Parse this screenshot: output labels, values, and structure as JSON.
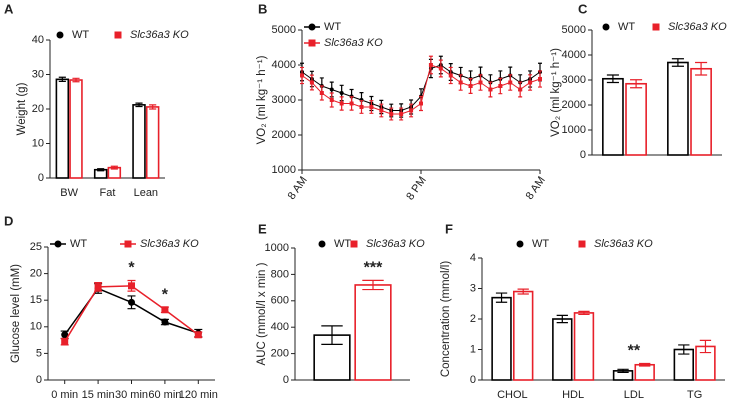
{
  "chart_data": [
    {
      "type": "bar",
      "panel_label": "A",
      "ylabel": "Weight (g)",
      "categories": [
        "BW",
        "Fat",
        "Lean"
      ],
      "ylim": [
        0,
        40
      ],
      "yticks": [
        0,
        10,
        20,
        30,
        40
      ],
      "series": [
        {
          "name": "WT",
          "color": "#000000",
          "marker": "circle",
          "values": [
            28.6,
            2.4,
            21.2
          ],
          "errors": [
            0.6,
            0.3,
            0.5
          ]
        },
        {
          "name": "Slc36a3 KO",
          "color": "#e8202a",
          "marker": "square",
          "values": [
            28.4,
            3.0,
            20.6
          ],
          "errors": [
            0.5,
            0.4,
            0.6
          ]
        }
      ]
    },
    {
      "type": "line",
      "panel_label": "B",
      "ylabel": "VO₂ (ml kg⁻¹ h⁻¹)",
      "x": [
        0,
        1,
        2,
        3,
        4,
        5,
        6,
        7,
        8,
        9,
        10,
        11,
        12,
        13,
        14,
        15,
        16,
        17,
        18,
        19,
        20,
        21,
        22,
        23,
        24
      ],
      "xlim": [
        0,
        24
      ],
      "xticks": [
        {
          "value": 0,
          "label": "8 AM"
        },
        {
          "value": 12,
          "label": "8 PM"
        },
        {
          "value": 24,
          "label": "8 AM"
        }
      ],
      "ylim": [
        1000,
        5000
      ],
      "yticks": [
        1000,
        2000,
        3000,
        4000,
        5000
      ],
      "series": [
        {
          "name": "WT",
          "color": "#000000",
          "marker": "circle",
          "values": [
            3800,
            3600,
            3400,
            3300,
            3200,
            3100,
            3000,
            2900,
            2800,
            2700,
            2700,
            2800,
            3100,
            3900,
            4000,
            3800,
            3700,
            3600,
            3700,
            3500,
            3600,
            3700,
            3500,
            3600,
            3800
          ],
          "errors": [
            250,
            220,
            230,
            210,
            220,
            200,
            210,
            200,
            190,
            180,
            190,
            200,
            220,
            260,
            250,
            240,
            230,
            230,
            240,
            220,
            230,
            240,
            220,
            230,
            250
          ]
        },
        {
          "name": "Slc36a3 KO",
          "color": "#e8202a",
          "marker": "square",
          "values": [
            3700,
            3500,
            3200,
            3000,
            2900,
            2900,
            2800,
            2800,
            2700,
            2600,
            2600,
            2700,
            2900,
            4000,
            3900,
            3700,
            3500,
            3400,
            3500,
            3300,
            3400,
            3500,
            3300,
            3500,
            3600
          ],
          "errors": [
            230,
            210,
            200,
            200,
            190,
            190,
            180,
            180,
            180,
            170,
            170,
            180,
            200,
            250,
            240,
            230,
            220,
            210,
            220,
            210,
            220,
            220,
            210,
            220,
            230
          ]
        }
      ]
    },
    {
      "type": "bar",
      "panel_label": "C",
      "ylabel": "VO₂ (ml kg⁻¹ h⁻¹)",
      "categories": [
        null,
        null
      ],
      "ylim": [
        0,
        5000
      ],
      "yticks": [
        0,
        1000,
        2000,
        3000,
        4000,
        5000
      ],
      "series": [
        {
          "name": "WT",
          "color": "#000000",
          "marker": "circle",
          "values": [
            3050,
            3700
          ],
          "errors": [
            150,
            150
          ]
        },
        {
          "name": "Slc36a3 KO",
          "color": "#e8202a",
          "marker": "square",
          "values": [
            2850,
            3450
          ],
          "errors": [
            160,
            250
          ]
        }
      ]
    },
    {
      "type": "line",
      "panel_label": "D",
      "ylabel": "Glucose level (mM)",
      "categories": [
        "0 min",
        "15 min",
        "30 min",
        "60 min",
        "120 min"
      ],
      "ylim": [
        0,
        25
      ],
      "yticks": [
        0,
        5,
        10,
        15,
        20,
        25
      ],
      "annotations": [
        {
          "text": "*",
          "category": "30 min"
        },
        {
          "text": "*",
          "category": "60 min"
        }
      ],
      "series": [
        {
          "name": "WT",
          "color": "#000000",
          "marker": "circle",
          "values": [
            8.5,
            17.2,
            14.6,
            10.9,
            8.8
          ],
          "errors": [
            0.7,
            0.9,
            1.2,
            0.5,
            0.7
          ]
        },
        {
          "name": "Slc36a3 KO",
          "color": "#e8202a",
          "marker": "square",
          "values": [
            7.2,
            17.5,
            17.7,
            13.2,
            8.5
          ],
          "errors": [
            0.6,
            0.8,
            1.0,
            0.5,
            0.5
          ]
        }
      ]
    },
    {
      "type": "bar",
      "panel_label": "E",
      "ylabel": "AUC (mmol/l x min )",
      "categories": [
        null
      ],
      "ylim": [
        0,
        1000
      ],
      "yticks": [
        0,
        200,
        400,
        600,
        800,
        1000
      ],
      "annotations": [
        {
          "text": "***",
          "series": "Slc36a3 KO"
        }
      ],
      "series": [
        {
          "name": "WT",
          "color": "#000000",
          "marker": "circle",
          "values": [
            340
          ],
          "errors": [
            70
          ]
        },
        {
          "name": "Slc36a3 KO",
          "color": "#e8202a",
          "marker": "square",
          "values": [
            720
          ],
          "errors": [
            35
          ]
        }
      ]
    },
    {
      "type": "bar",
      "panel_label": "F",
      "ylabel": "Concentration (mmol/l)",
      "categories": [
        "CHOL",
        "HDL",
        "LDL",
        "TG"
      ],
      "ylim": [
        0,
        4
      ],
      "yticks": [
        0,
        1,
        2,
        3,
        4
      ],
      "annotations": [
        {
          "text": "**",
          "category": "LDL"
        }
      ],
      "series": [
        {
          "name": "WT",
          "color": "#000000",
          "marker": "circle",
          "values": [
            2.7,
            2.0,
            0.3,
            1.0
          ],
          "errors": [
            0.15,
            0.12,
            0.05,
            0.15
          ]
        },
        {
          "name": "Slc36a3 KO",
          "color": "#e8202a",
          "marker": "square",
          "values": [
            2.9,
            2.2,
            0.5,
            1.1
          ],
          "errors": [
            0.08,
            0.05,
            0.04,
            0.2
          ]
        }
      ]
    }
  ]
}
